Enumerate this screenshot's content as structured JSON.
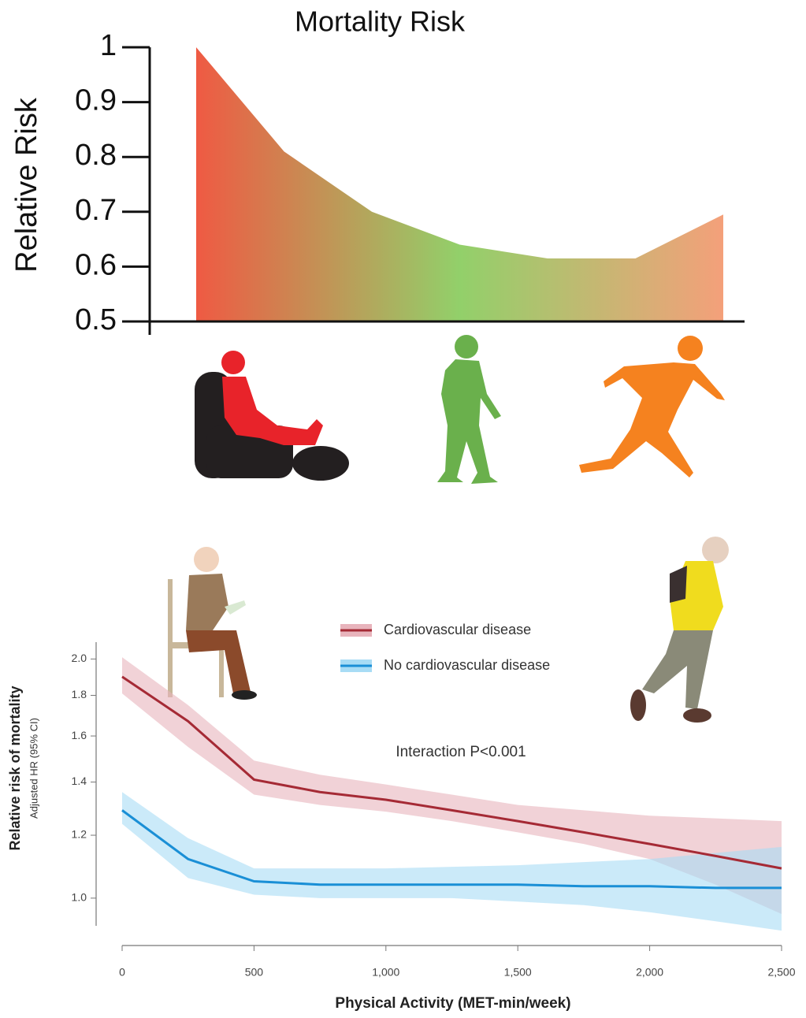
{
  "chart_data": [
    {
      "type": "area",
      "title": "Mortality Risk",
      "y_label": "Relative Risk",
      "categories": [
        null,
        null,
        null,
        null,
        null,
        null,
        null
      ],
      "values": [
        1.0,
        0.81,
        0.7,
        0.64,
        0.615,
        0.615,
        0.695
      ],
      "colors": [
        "#ef5a43",
        "#92d06a",
        "#f4a07a"
      ],
      "ylim": [
        0.5,
        1
      ],
      "yticks": [
        0.5,
        0.6,
        0.7,
        0.8,
        0.9,
        1
      ]
    },
    {
      "type": "line",
      "x_label": "Physical Activity (MET-min/week)",
      "y_label": "Relative risk of mortality",
      "y_sublabel": "Adjusted HR (95% CI)",
      "annotation": "Interaction P<0.001",
      "log_y": true,
      "x": [
        0,
        250,
        500,
        750,
        1000,
        1250,
        1500,
        1750,
        2000,
        2250,
        2500
      ],
      "series": [
        {
          "name": "Cardiovascular disease",
          "color": "#a52a35",
          "band_color": "#e8b4bc",
          "values": [
            1.9,
            1.67,
            1.41,
            1.36,
            1.33,
            1.29,
            1.25,
            1.21,
            1.17,
            1.13,
            1.09
          ],
          "lower": [
            1.81,
            1.55,
            1.35,
            1.31,
            1.285,
            1.25,
            1.21,
            1.17,
            1.12,
            1.04,
            0.955
          ],
          "upper": [
            2.01,
            1.75,
            1.49,
            1.43,
            1.39,
            1.35,
            1.31,
            1.29,
            1.27,
            1.26,
            1.25
          ]
        },
        {
          "name": "No cardiovascular disease",
          "color": "#1a8fd6",
          "band_color": "#a8dcf5",
          "values": [
            1.29,
            1.12,
            1.05,
            1.04,
            1.04,
            1.04,
            1.04,
            1.035,
            1.035,
            1.03,
            1.03
          ],
          "lower": [
            1.24,
            1.06,
            1.01,
            1.0,
            1.0,
            1.0,
            0.99,
            0.98,
            0.96,
            0.935,
            0.91
          ],
          "upper": [
            1.36,
            1.19,
            1.09,
            1.09,
            1.09,
            1.095,
            1.1,
            1.11,
            1.12,
            1.14,
            1.16
          ]
        }
      ],
      "xlim": [
        0,
        2500
      ],
      "xticks": [
        0,
        500,
        {
          "value": 1000,
          "label": "1,000"
        },
        {
          "value": 1500,
          "label": "1,500"
        },
        {
          "value": 2000,
          "label": "2,000"
        },
        {
          "value": 2500,
          "label": "2,500"
        }
      ],
      "ylim": [
        0.9,
        2.1
      ],
      "yticks": [
        {
          "value": 1.0,
          "label": "1.0"
        },
        1.2,
        1.4,
        1.6,
        1.8,
        {
          "value": 2.0,
          "label": "2.0"
        }
      ]
    }
  ]
}
